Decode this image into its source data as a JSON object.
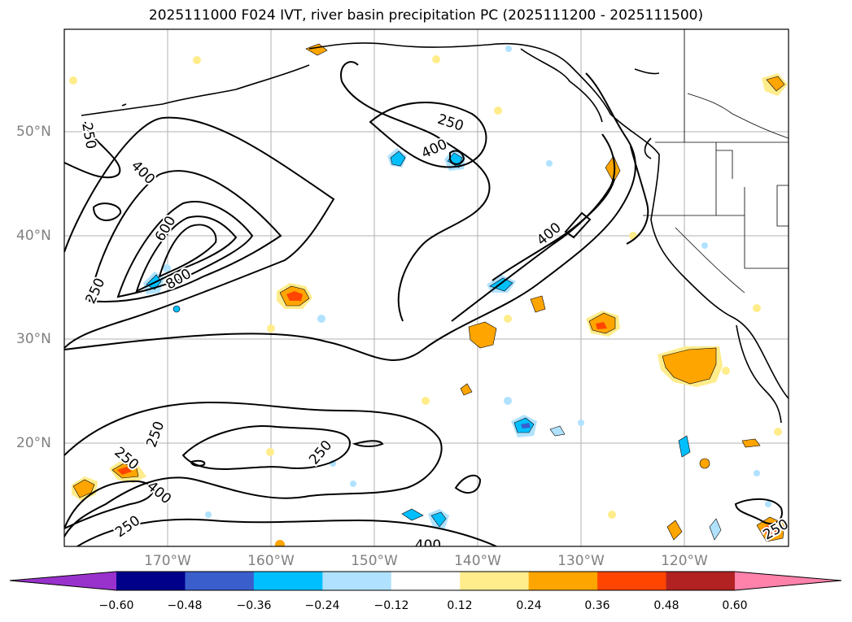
{
  "title": "2025111000 F024 IVT, river basin precipitation PC (2025111200 - 2025111500)",
  "map": {
    "lat_labels": [
      "50°N",
      "40°N",
      "30°N",
      "20°N"
    ],
    "lon_labels": [
      "170°W",
      "160°W",
      "150°W",
      "140°W",
      "130°W",
      "120°W"
    ],
    "contour_labels": [
      "250",
      "400",
      "600",
      "800",
      "250",
      "250",
      "400",
      "250",
      "400",
      "250",
      "400",
      "250",
      "250",
      "400",
      "250"
    ],
    "colors": {
      "coast": "#000000",
      "grid": "#b0b0b0"
    }
  },
  "colorbar": {
    "labels": [
      "−0.60",
      "−0.48",
      "−0.36",
      "−0.24",
      "−0.12",
      "0.12",
      "0.24",
      "0.36",
      "0.48",
      "0.60"
    ],
    "colors": [
      "#9932cc",
      "#00008b",
      "#3a5fcd",
      "#00bfff",
      "#b0e2ff",
      "#ffffff",
      "#ffec8b",
      "#ffa500",
      "#ff4500",
      "#b22222",
      "#ff82ab"
    ]
  }
}
